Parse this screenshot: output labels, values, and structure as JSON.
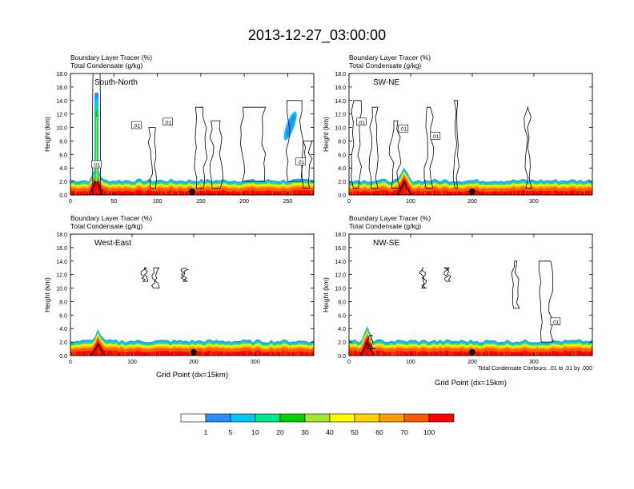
{
  "page_title": "2013-12-27_03:00:00",
  "colors": {
    "scale": [
      "#ffffff",
      "#2b8cff",
      "#00c8ff",
      "#00e68c",
      "#00d200",
      "#a0e632",
      "#ffff00",
      "#ffd200",
      "#ffa000",
      "#ff5a00",
      "#ff0000"
    ],
    "contour": "#000000",
    "terrain": "#000000"
  },
  "chart_data": [
    {
      "type": "heatmap",
      "title": "South-North",
      "subtitle_lines": [
        "Boundary Layer Tracer   (%)",
        "Total Condensate   (g/kg)"
      ],
      "ylabel": "Height (km)",
      "xlabel": "",
      "ylim": [
        0,
        18
      ],
      "yticks": [
        "0.0",
        "2.0",
        "4.0",
        "6.0",
        "8.0",
        "10.0",
        "12.0",
        "14.0",
        "16.0",
        "18.0"
      ],
      "xlim": [
        0,
        280
      ],
      "xticks": [
        0,
        50,
        100,
        150,
        200,
        250
      ],
      "marker_x": 140,
      "contour_labels": [
        ".01",
        ".01",
        ".01",
        ".01"
      ],
      "terrain_peak_x": 30,
      "terrain_peak_km": 2.3,
      "plume_x": 30,
      "plume_top_km": 15.2,
      "upper_cloud_x": 253,
      "upper_cloud_km": [
        8.0,
        12.5
      ]
    },
    {
      "type": "heatmap",
      "title": "SW-NE",
      "subtitle_lines": [
        "Boundary Layer Tracer   (%)",
        "Total Condensate   (g/kg)"
      ],
      "ylabel": "Height (km)",
      "xlabel": "",
      "ylim": [
        0,
        18
      ],
      "yticks": [
        "0.0",
        "2.0",
        "4.0",
        "6.0",
        "8.0",
        "10.0",
        "12.0",
        "14.0",
        "16.0",
        "18.0"
      ],
      "xlim": [
        0,
        395
      ],
      "xticks": [
        0,
        100,
        200,
        300
      ],
      "marker_x": 200,
      "contour_labels": [
        ".01",
        ".01",
        ".01"
      ],
      "terrain_peak_x": 90,
      "terrain_peak_km": 2.0
    },
    {
      "type": "heatmap",
      "title": "West-East",
      "subtitle_lines": [
        "Boundary Layer Tracer   (%)",
        "Total Condensate   (g/kg)"
      ],
      "ylabel": "Height (km)",
      "xlabel": "Grid Point (dx=15km)",
      "ylim": [
        0,
        18
      ],
      "yticks": [
        "0.0",
        "2.0",
        "4.0",
        "6.0",
        "8.0",
        "10.0",
        "12.0",
        "14.0",
        "16.0",
        "18.0"
      ],
      "xlim": [
        0,
        395
      ],
      "xticks": [
        0,
        100,
        200,
        300
      ],
      "marker_x": 200,
      "contour_labels": [],
      "terrain_peak_x": 45,
      "terrain_peak_km": 1.7
    },
    {
      "type": "heatmap",
      "title": "NW-SE",
      "subtitle_lines": [
        "Boundary Layer Tracer   (%)",
        "Total Condensate   (g/kg)"
      ],
      "ylabel": "Height (km)",
      "xlabel": "Grid Point (dx=15km)",
      "ylim": [
        0,
        18
      ],
      "yticks": [
        "0.0",
        "2.0",
        "4.0",
        "6.0",
        "8.0",
        "10.0",
        "12.0",
        "14.0",
        "16.0",
        "18.0"
      ],
      "xlim": [
        0,
        395
      ],
      "xticks": [
        0,
        100,
        200,
        300
      ],
      "marker_x": 200,
      "contour_labels": [
        ".01"
      ],
      "contour_note": "Total Condensate Contours: .01 to .01 by .000",
      "terrain_peak_x": 30,
      "terrain_peak_km": 2.0
    }
  ],
  "colorbar": {
    "labels": [
      "1",
      "5",
      "10",
      "20",
      "30",
      "40",
      "50",
      "60",
      "70",
      "100"
    ]
  }
}
